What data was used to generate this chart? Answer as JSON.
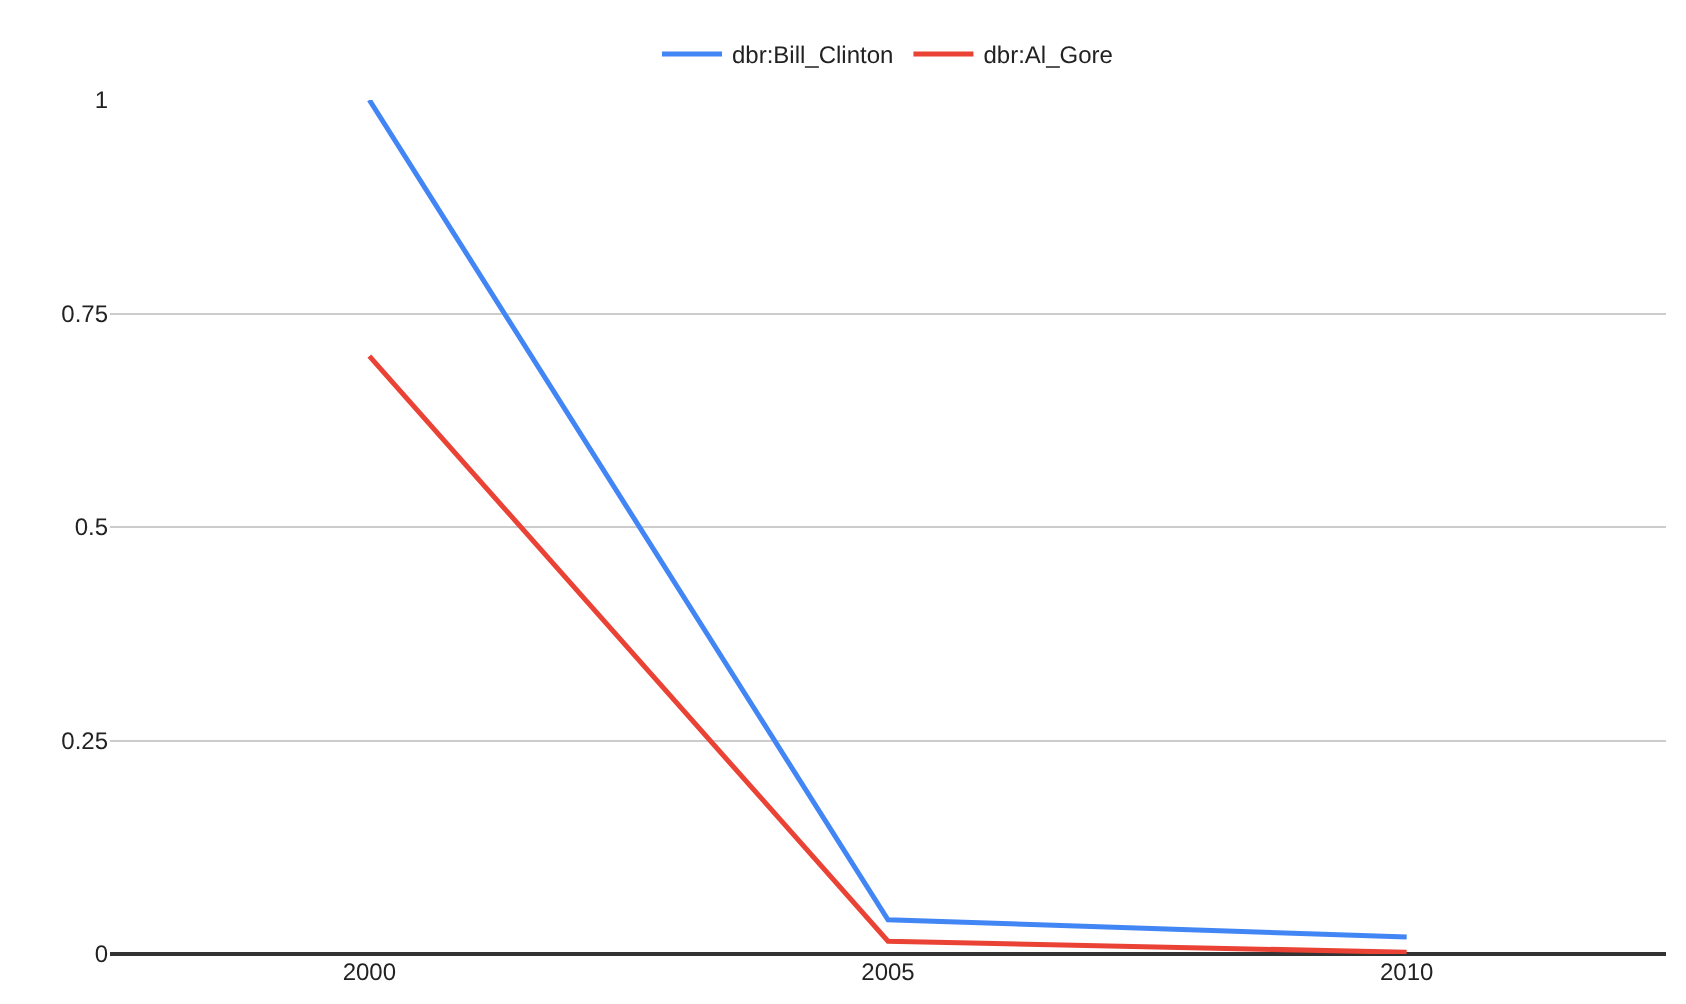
{
  "chart_data": {
    "type": "line",
    "categories": [
      "2000",
      "2005",
      "2010"
    ],
    "series": [
      {
        "name": "dbr:Bill_Clinton",
        "color": "#4285f4",
        "values": [
          1,
          0.04,
          0.02
        ]
      },
      {
        "name": "dbr:Al_Gore",
        "color": "#ea4335",
        "values": [
          0.7,
          0.015,
          0.002
        ]
      }
    ],
    "ylim": [
      0,
      1
    ],
    "yticks": [
      0,
      0.25,
      0.5,
      0.75,
      1
    ],
    "grid": "y",
    "legend": "top",
    "marker": "none",
    "line_style": "solid"
  }
}
